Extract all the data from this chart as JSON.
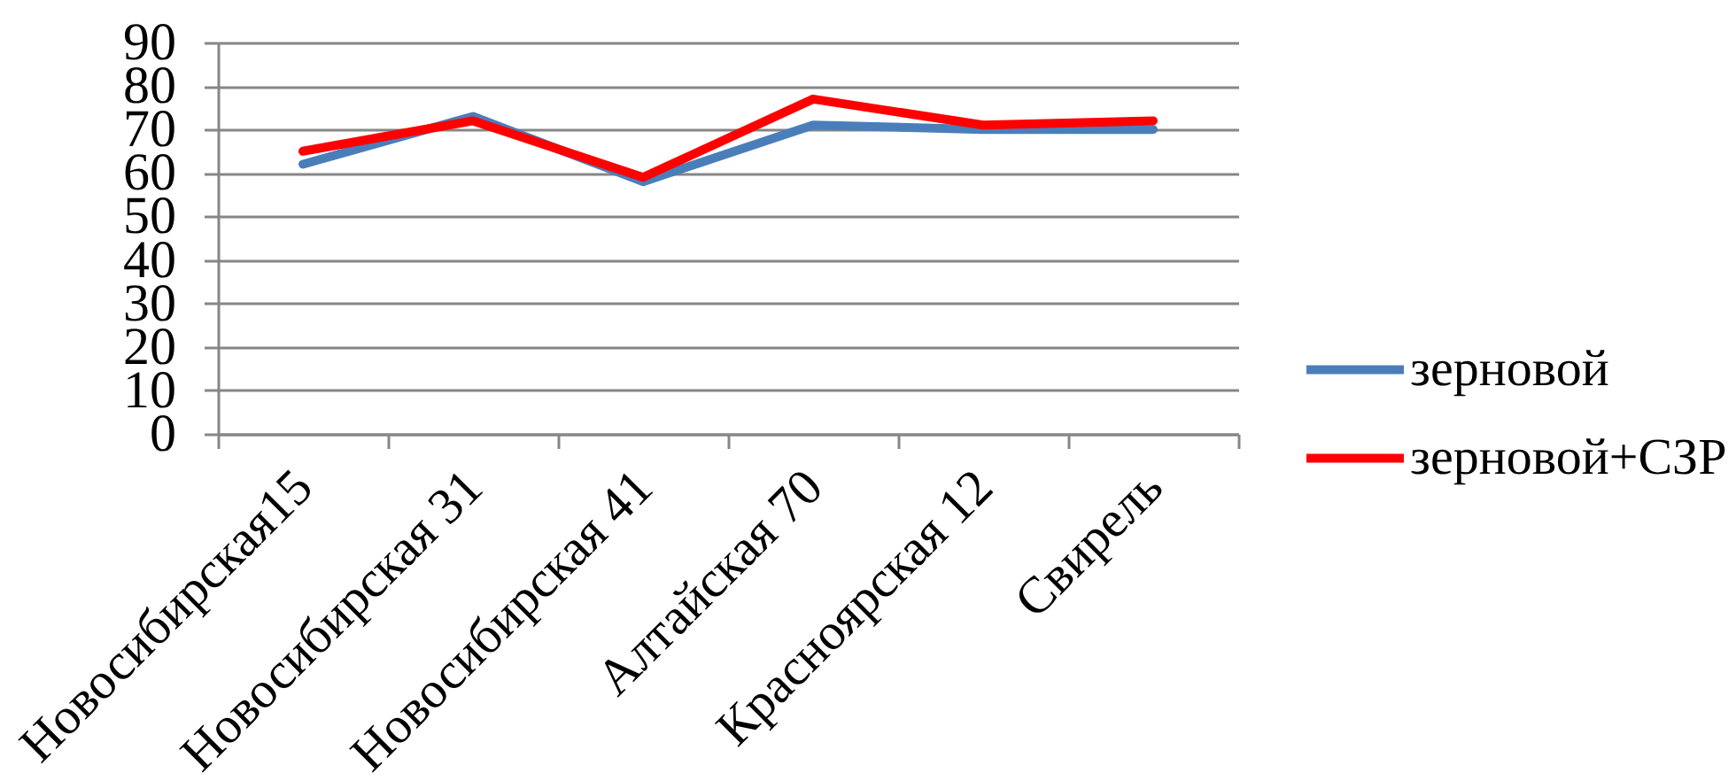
{
  "chart_data": {
    "type": "line",
    "categories": [
      "Новосибирская15",
      "Новосибирская 31",
      "Новосибирская 41",
      "Алтайская 70",
      "Красноярская 12",
      "Свирель"
    ],
    "series": [
      {
        "name": "зерновой",
        "color": "#4a7ebb",
        "values": [
          62,
          73,
          58,
          71,
          70,
          70
        ]
      },
      {
        "name": "зерновой+СЗР",
        "color": "#ff0000",
        "values": [
          65,
          72,
          59,
          77,
          71,
          72
        ]
      }
    ],
    "ylim": [
      0,
      90
    ],
    "yticks": [
      0,
      10,
      20,
      30,
      40,
      50,
      60,
      70,
      80,
      90
    ],
    "grid": "y",
    "legend": "right",
    "line_style": "solid"
  }
}
